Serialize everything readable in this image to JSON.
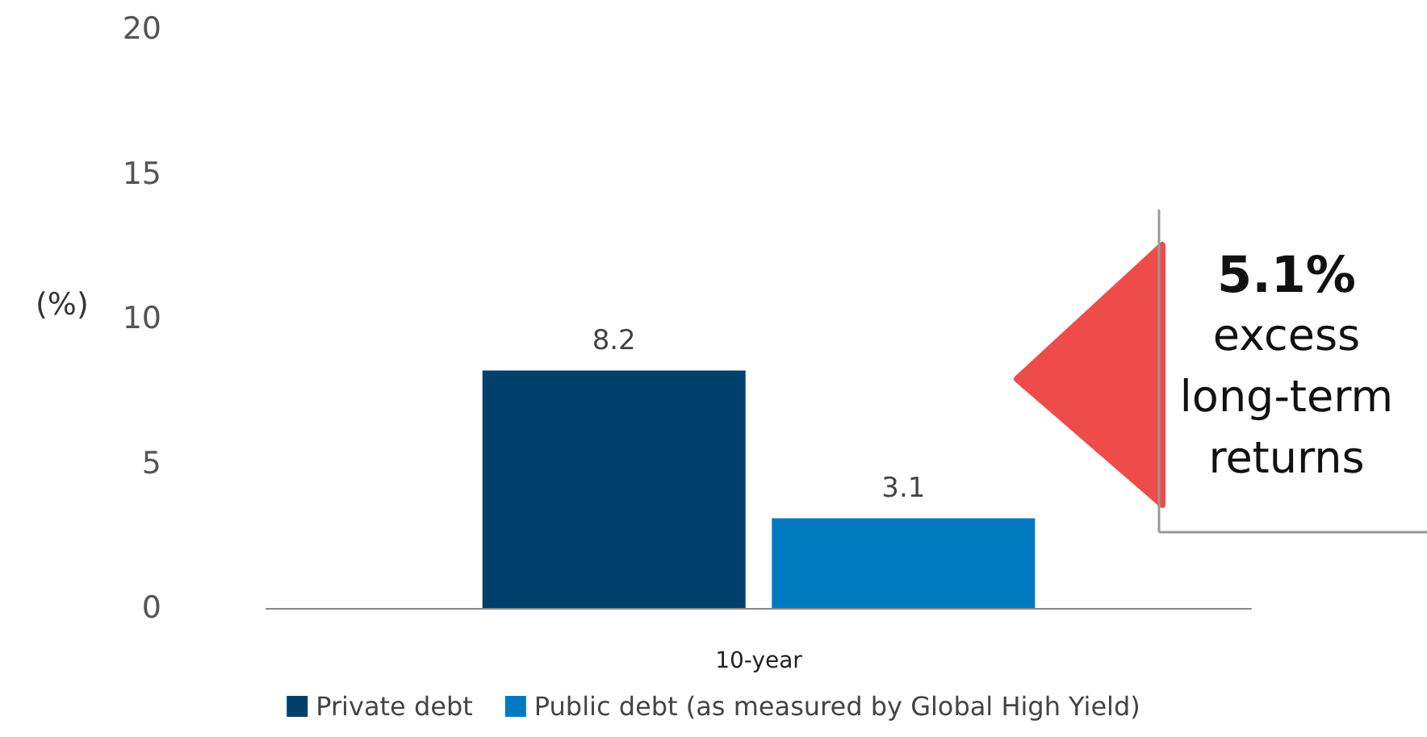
{
  "chart_data": {
    "type": "bar",
    "categories": [
      "10-year"
    ],
    "ylabel": "(%)",
    "series": [
      {
        "name": "Private debt",
        "color": "#00416b",
        "values": [
          8.2
        ]
      },
      {
        "name": "Public debt (as measured by Global High Yield)",
        "color": "#0079c1",
        "values": [
          3.1
        ]
      }
    ],
    "ylim": [
      0,
      20
    ],
    "yticks": [
      0,
      5,
      10,
      15,
      20
    ],
    "grid": false,
    "legend": "bottom",
    "data_labels": true,
    "annotations": [
      "5.1%",
      "excess\nlong-term\nreturns"
    ]
  }
}
